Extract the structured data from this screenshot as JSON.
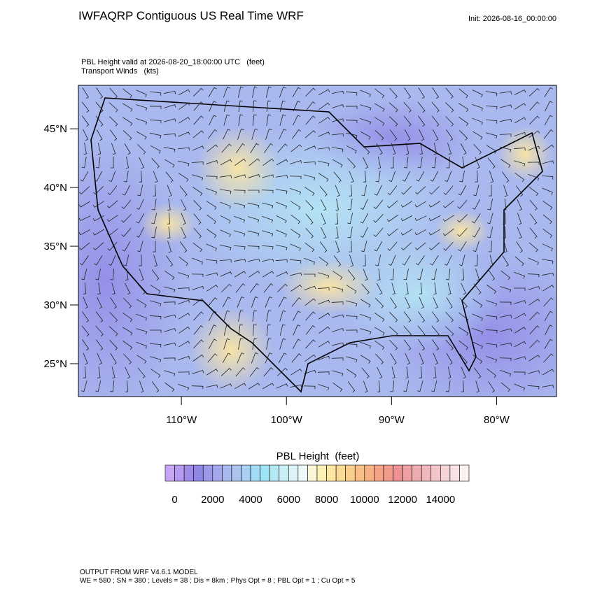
{
  "header": {
    "title": "IWFAQRP Contiguous US Real Time WRF",
    "init": "Init: 2026-08-16_00:00:00"
  },
  "subtitle": [
    "PBL Height valid at 2026-08-20_18:00:00 UTC   (feet)",
    "Transport Winds   (kts)"
  ],
  "map": {
    "xlim": [
      -119.8,
      -74.3
    ],
    "ylim": [
      22.2,
      48.7
    ],
    "xticks": [
      {
        "value": -110,
        "label": "110°W"
      },
      {
        "value": -100,
        "label": "100°W"
      },
      {
        "value": -90,
        "label": "90°W"
      },
      {
        "value": -80,
        "label": "80°W"
      }
    ],
    "yticks": [
      {
        "value": 25,
        "label": "25°N"
      },
      {
        "value": 30,
        "label": "30°N"
      },
      {
        "value": 35,
        "label": "35°N"
      },
      {
        "value": 40,
        "label": "40°N"
      },
      {
        "value": 45,
        "label": "45°N"
      }
    ]
  },
  "colorbar": {
    "title": "PBL Height  (feet)",
    "range": [
      -500,
      15500
    ],
    "ticks": [
      0,
      2000,
      4000,
      6000,
      8000,
      10000,
      12000,
      14000
    ],
    "colors": [
      "#c9a6f5",
      "#b59af0",
      "#a08ae8",
      "#8f86e6",
      "#9a9ae8",
      "#a4a8ea",
      "#a9b8ee",
      "#aec4f0",
      "#a8cff4",
      "#a2dbf6",
      "#9fe3f6",
      "#b4e8f5",
      "#c9eef6",
      "#dcf3f8",
      "#eef8fa",
      "#fbf6d6",
      "#fdf0b4",
      "#fbe6a2",
      "#fbdb96",
      "#f9cd8c",
      "#f8bf86",
      "#f6b184",
      "#f4a384",
      "#f29a8c",
      "#ee9294",
      "#eca0a4",
      "#eeacb0",
      "#f0b8bc",
      "#f4c6ca",
      "#f6d4d6",
      "#f9e2e4",
      "#fcf0f0"
    ]
  },
  "footer": [
    "OUTPUT FROM WRF V4.6.1 MODEL",
    "WE = 580 ; SN = 380 ; Levels = 38 ; Dis = 8km ; Phys Opt = 8 ; PBL Opt = 1 ; Cu Opt = 5"
  ]
}
